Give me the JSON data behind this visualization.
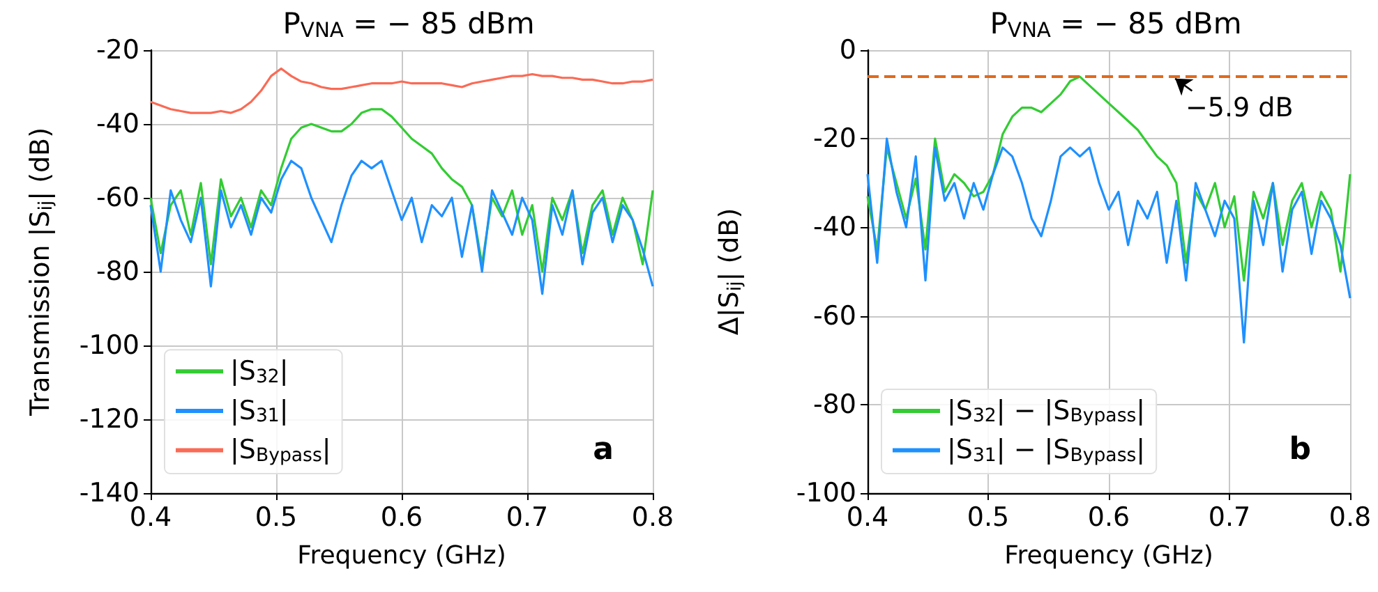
{
  "chart_data": [
    {
      "type": "line",
      "title": "P$_{VNA}$ = − 85 dBm",
      "xlabel": "Frequency (GHz)",
      "ylabel": "Transmission |S$_{ij}$| (dB)",
      "x": [
        0.4,
        0.408,
        0.416,
        0.424,
        0.432,
        0.44,
        0.448,
        0.456,
        0.464,
        0.472,
        0.48,
        0.488,
        0.496,
        0.504,
        0.512,
        0.52,
        0.528,
        0.536,
        0.544,
        0.552,
        0.56,
        0.568,
        0.576,
        0.584,
        0.592,
        0.6,
        0.608,
        0.616,
        0.624,
        0.632,
        0.64,
        0.648,
        0.656,
        0.664,
        0.672,
        0.68,
        0.688,
        0.696,
        0.704,
        0.712,
        0.72,
        0.728,
        0.736,
        0.744,
        0.752,
        0.76,
        0.768,
        0.776,
        0.784,
        0.792,
        0.8
      ],
      "series": [
        {
          "name": "|S$_{32}$|",
          "color": "#33cc33",
          "values": [
            -60,
            -75,
            -62,
            -58,
            -70,
            -56,
            -78,
            -55,
            -65,
            -60,
            -68,
            -58,
            -62,
            -52,
            -44,
            -41,
            -40,
            -41,
            -42,
            -42,
            -40,
            -37,
            -36,
            -36,
            -38,
            -41,
            -44,
            -46,
            -48,
            -52,
            -55,
            -57,
            -62,
            -78,
            -60,
            -65,
            -58,
            -70,
            -62,
            -80,
            -60,
            -66,
            -58,
            -75,
            -62,
            -58,
            -70,
            -60,
            -66,
            -78,
            -58
          ]
        },
        {
          "name": "|S$_{31}$|",
          "color": "#1e90ff",
          "values": [
            -62,
            -80,
            -58,
            -66,
            -72,
            -60,
            -84,
            -58,
            -68,
            -62,
            -70,
            -60,
            -64,
            -55,
            -50,
            -52,
            -60,
            -66,
            -72,
            -62,
            -54,
            -50,
            -52,
            -50,
            -58,
            -66,
            -60,
            -72,
            -62,
            -65,
            -60,
            -76,
            -62,
            -80,
            -58,
            -64,
            -70,
            -60,
            -66,
            -86,
            -62,
            -70,
            -58,
            -78,
            -64,
            -60,
            -72,
            -62,
            -66,
            -74,
            -84
          ]
        },
        {
          "name": "|S$_{Bypass}$|",
          "color": "#fa6a55",
          "values": [
            -34,
            -35,
            -36,
            -36.5,
            -37,
            -37,
            -37,
            -36.5,
            -37,
            -36,
            -34,
            -31,
            -27,
            -25,
            -27,
            -28.5,
            -29,
            -30,
            -30.5,
            -30.5,
            -30,
            -29.5,
            -29,
            -29,
            -29,
            -28.5,
            -29,
            -29,
            -29,
            -29,
            -29.5,
            -30,
            -29,
            -28.5,
            -28,
            -27.5,
            -27,
            -27,
            -26.5,
            -27,
            -27,
            -27.5,
            -27.5,
            -28,
            -28,
            -28.5,
            -29,
            -29,
            -28.5,
            -28.5,
            -28
          ]
        }
      ],
      "xlim": [
        0.4,
        0.8
      ],
      "xticks": [
        0.4,
        0.5,
        0.6,
        0.7,
        0.8
      ],
      "ylim": [
        -140,
        -20
      ],
      "yticks": [
        -140,
        -120,
        -100,
        -80,
        -60,
        -40,
        -20
      ],
      "grid": true,
      "legend": "bottom left",
      "marker": "none",
      "line_style": "solid",
      "annotations": [
        "a"
      ]
    },
    {
      "type": "line",
      "title": "P$_{VNA}$ = − 85 dBm",
      "xlabel": "Frequency (GHz)",
      "ylabel": "Δ|S$_{ij}$| (dB)",
      "x": [
        0.4,
        0.408,
        0.416,
        0.424,
        0.432,
        0.44,
        0.448,
        0.456,
        0.464,
        0.472,
        0.48,
        0.488,
        0.496,
        0.504,
        0.512,
        0.52,
        0.528,
        0.536,
        0.544,
        0.552,
        0.56,
        0.568,
        0.576,
        0.584,
        0.592,
        0.6,
        0.608,
        0.616,
        0.624,
        0.632,
        0.64,
        0.648,
        0.656,
        0.664,
        0.672,
        0.68,
        0.688,
        0.696,
        0.704,
        0.712,
        0.72,
        0.728,
        0.736,
        0.744,
        0.752,
        0.76,
        0.768,
        0.776,
        0.784,
        0.792,
        0.8
      ],
      "series": [
        {
          "name": "|S$_{32}$| − |S$_{Bypass}$|",
          "color": "#33cc33",
          "values": [
            -33,
            -45,
            -22,
            -30,
            -38,
            -29,
            -45,
            -20,
            -32,
            -28,
            -30,
            -33,
            -32,
            -28,
            -19,
            -15,
            -13,
            -13,
            -14,
            -12,
            -10,
            -7,
            -6,
            -8,
            -10,
            -12,
            -14,
            -16,
            -18,
            -21,
            -24,
            -26,
            -30,
            -48,
            -32,
            -36,
            -30,
            -40,
            -33,
            -52,
            -32,
            -38,
            -30,
            -44,
            -34,
            -30,
            -40,
            -32,
            -36,
            -50,
            -28
          ]
        },
        {
          "name": "|S$_{31}$| − |S$_{Bypass}$|",
          "color": "#1e90ff",
          "values": [
            -28,
            -48,
            -20,
            -32,
            -40,
            -24,
            -52,
            -22,
            -34,
            -30,
            -38,
            -30,
            -36,
            -28,
            -22,
            -24,
            -30,
            -38,
            -42,
            -34,
            -24,
            -22,
            -24,
            -22,
            -30,
            -36,
            -32,
            -44,
            -34,
            -38,
            -32,
            -48,
            -34,
            -52,
            -30,
            -36,
            -42,
            -34,
            -38,
            -66,
            -34,
            -44,
            -30,
            -50,
            -36,
            -32,
            -46,
            -34,
            -38,
            -44,
            -56
          ]
        }
      ],
      "xlim": [
        0.4,
        0.8
      ],
      "xticks": [
        0.4,
        0.5,
        0.6,
        0.7,
        0.8
      ],
      "ylim": [
        -100,
        0
      ],
      "yticks": [
        -100,
        -80,
        -60,
        -40,
        -20,
        0
      ],
      "ref_lines": [
        {
          "axis": "y",
          "value": -5.9,
          "color": "#e0691c",
          "line_style": "dashed"
        }
      ],
      "grid": true,
      "legend": "bottom left",
      "marker": "none",
      "line_style": "solid",
      "annotations": [
        {
          "text": "−5.9 dB",
          "x": 0.655,
          "y": -5.9
        },
        "b"
      ]
    }
  ]
}
